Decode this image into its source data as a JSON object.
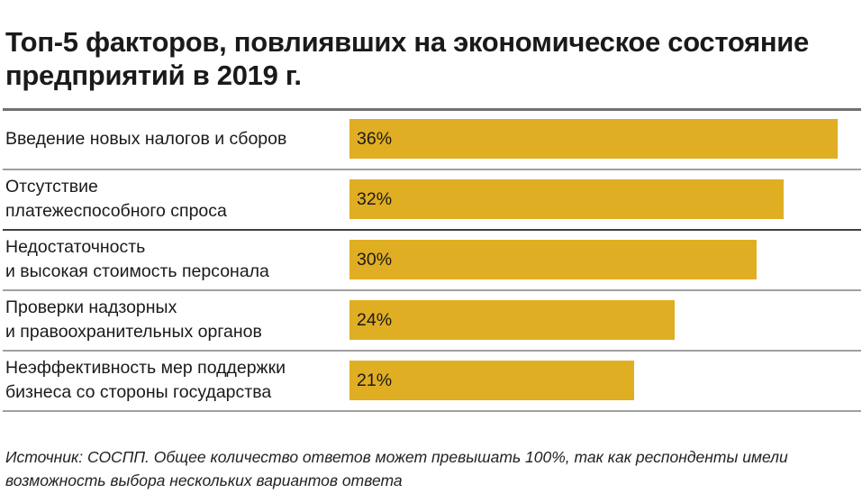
{
  "chart_data": {
    "type": "bar",
    "orientation": "horizontal",
    "title": "Топ-5 факторов, повлиявших на экономическое состояние предприятий в 2019 г.",
    "categories": [
      [
        "Введение новых налогов и сборов"
      ],
      [
        "Отсутствие",
        "платежеспособного спроса"
      ],
      [
        "Недостаточность",
        "и высокая стоимость персонала"
      ],
      [
        "Проверки надзорных",
        "и правоохранительных органов"
      ],
      [
        "Неэффективность мер поддержки",
        "бизнеса со стороны государства"
      ]
    ],
    "values": [
      36,
      32,
      30,
      24,
      21
    ],
    "value_labels": [
      "36%",
      "32%",
      "30%",
      "24%",
      "21%"
    ],
    "unit": "%",
    "bar_color": "#e0ae22",
    "grid": false,
    "note": "Источник: СОСПП. Общее количество ответов может превышать 100%, так как респонденты имели возможность выбора нескольких вариантов ответа"
  }
}
